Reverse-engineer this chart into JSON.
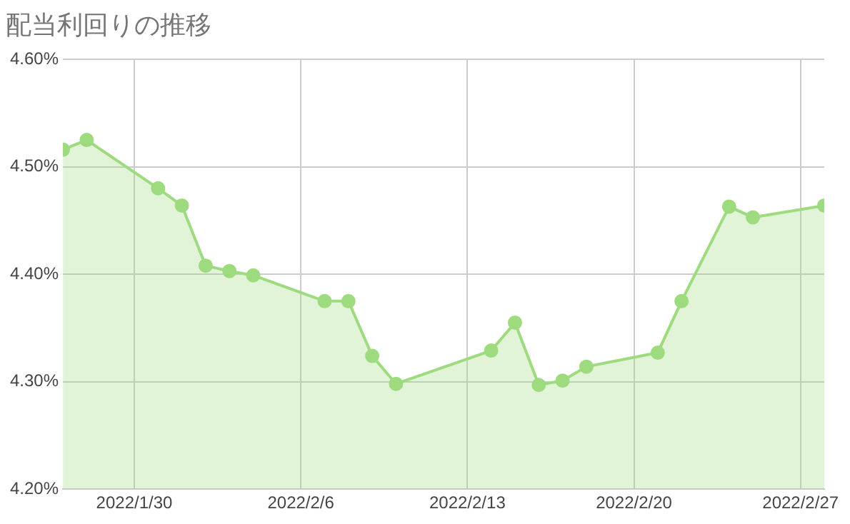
{
  "chart_data": {
    "type": "area",
    "title": "配当利回りの推移",
    "x": [
      "2022-01-27",
      "2022-01-28",
      "2022-01-31",
      "2022-02-01",
      "2022-02-02",
      "2022-02-03",
      "2022-02-04",
      "2022-02-07",
      "2022-02-08",
      "2022-02-09",
      "2022-02-10",
      "2022-02-14",
      "2022-02-15",
      "2022-02-16",
      "2022-02-17",
      "2022-02-18",
      "2022-02-21",
      "2022-02-22",
      "2022-02-24",
      "2022-02-25",
      "2022-02-28"
    ],
    "series": [
      {
        "color": "#9edb7f",
        "values": [
          4.516,
          4.525,
          4.48,
          4.464,
          4.408,
          4.403,
          4.399,
          4.375,
          4.375,
          4.324,
          4.298,
          4.329,
          4.355,
          4.297,
          4.301,
          4.314,
          4.327,
          4.375,
          4.463,
          4.453,
          4.464
        ]
      }
    ],
    "xlim": [
      "2022-01-27",
      "2022-02-28"
    ],
    "xticks": [
      {
        "value": "2022-01-30",
        "label": "2022/1/30"
      },
      {
        "value": "2022-02-06",
        "label": "2022/2/6"
      },
      {
        "value": "2022-02-13",
        "label": "2022/2/13"
      },
      {
        "value": "2022-02-20",
        "label": "2022/2/20"
      },
      {
        "value": "2022-02-27",
        "label": "2022/2/27"
      }
    ],
    "ylim": [
      4.2,
      4.6
    ],
    "yticks": [
      {
        "value": 4.2,
        "label": "4.20%"
      },
      {
        "value": 4.3,
        "label": "4.30%"
      },
      {
        "value": 4.4,
        "label": "4.40%"
      },
      {
        "value": 4.5,
        "label": "4.50%"
      },
      {
        "value": 4.6,
        "label": "4.60%"
      }
    ],
    "grid": true,
    "legend": false,
    "marker": "circle",
    "line_style": "solid"
  }
}
